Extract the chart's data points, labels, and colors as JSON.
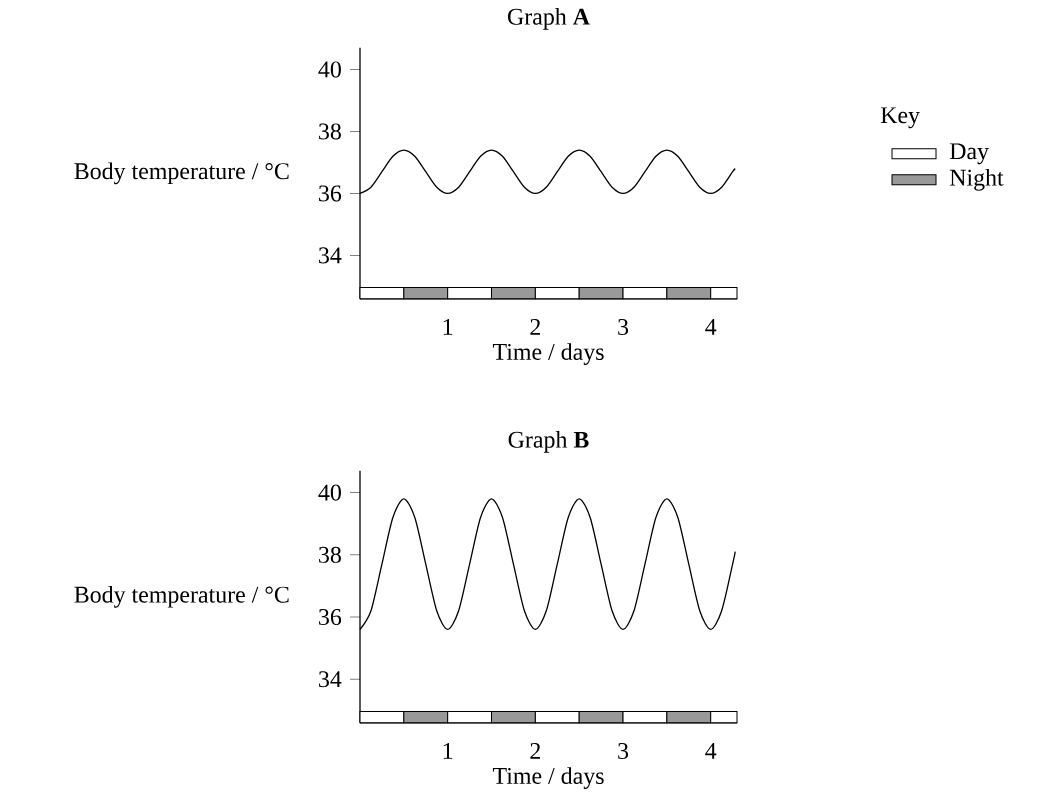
{
  "chart_data": [
    {
      "type": "line",
      "title": "Graph **A**",
      "xlabel": "Time / days",
      "ylabel": "Body temperature / °C",
      "xlim": [
        0,
        4.3
      ],
      "ylim": [
        32.6,
        40.7
      ],
      "xticks": [
        1,
        2,
        3,
        4
      ],
      "yticks": [
        34,
        36,
        38,
        40
      ],
      "legend": "right",
      "legend_title": "Key",
      "bands": [
        {
          "axis": "x",
          "from": 0,
          "to": 0.5,
          "color": "#ffffff",
          "label": "Day"
        },
        {
          "axis": "x",
          "from": 0.5,
          "to": 1,
          "color": "#999999",
          "label": "Night"
        },
        {
          "axis": "x",
          "from": 1,
          "to": 1.5,
          "color": "#ffffff"
        },
        {
          "axis": "x",
          "from": 1.5,
          "to": 2,
          "color": "#999999"
        },
        {
          "axis": "x",
          "from": 2,
          "to": 2.5,
          "color": "#ffffff"
        },
        {
          "axis": "x",
          "from": 2.5,
          "to": 3,
          "color": "#999999"
        },
        {
          "axis": "x",
          "from": 3,
          "to": 3.5,
          "color": "#ffffff"
        },
        {
          "axis": "x",
          "from": 3.5,
          "to": 4,
          "color": "#999999"
        },
        {
          "axis": "x",
          "from": 4,
          "to": 4.3,
          "color": "#ffffff"
        }
      ],
      "series": [
        {
          "color": "#000000",
          "x": [
            0,
            0.125,
            0.25,
            0.375,
            0.5,
            0.625,
            0.75,
            0.875,
            1,
            1.125,
            1.25,
            1.375,
            1.5,
            1.625,
            1.75,
            1.875,
            2,
            2.125,
            2.25,
            2.375,
            2.5,
            2.625,
            2.75,
            2.875,
            3,
            3.125,
            3.25,
            3.375,
            3.5,
            3.625,
            3.75,
            3.875,
            4,
            4.125,
            4.25,
            4.28
          ],
          "values": [
            36.0,
            36.2,
            36.7,
            37.2,
            37.4,
            37.2,
            36.7,
            36.2,
            36.0,
            36.2,
            36.7,
            37.2,
            37.4,
            37.2,
            36.7,
            36.2,
            36.0,
            36.2,
            36.7,
            37.2,
            37.4,
            37.2,
            36.7,
            36.2,
            36.0,
            36.2,
            36.7,
            37.2,
            37.4,
            37.2,
            36.7,
            36.2,
            36.0,
            36.2,
            36.7,
            36.8
          ]
        }
      ]
    },
    {
      "type": "line",
      "title": "Graph **B**",
      "xlabel": "Time / days",
      "ylabel": "Body temperature / °C",
      "xlim": [
        0,
        4.3
      ],
      "ylim": [
        32.6,
        40.7
      ],
      "xticks": [
        1,
        2,
        3,
        4
      ],
      "yticks": [
        34,
        36,
        38,
        40
      ],
      "bands": [
        {
          "axis": "x",
          "from": 0,
          "to": 0.5,
          "color": "#ffffff"
        },
        {
          "axis": "x",
          "from": 0.5,
          "to": 1,
          "color": "#999999"
        },
        {
          "axis": "x",
          "from": 1,
          "to": 1.5,
          "color": "#ffffff"
        },
        {
          "axis": "x",
          "from": 1.5,
          "to": 2,
          "color": "#999999"
        },
        {
          "axis": "x",
          "from": 2,
          "to": 2.5,
          "color": "#ffffff"
        },
        {
          "axis": "x",
          "from": 2.5,
          "to": 3,
          "color": "#999999"
        },
        {
          "axis": "x",
          "from": 3,
          "to": 3.5,
          "color": "#ffffff"
        },
        {
          "axis": "x",
          "from": 3.5,
          "to": 4,
          "color": "#999999"
        },
        {
          "axis": "x",
          "from": 4,
          "to": 4.3,
          "color": "#ffffff"
        }
      ],
      "series": [
        {
          "color": "#000000",
          "x": [
            0,
            0.125,
            0.25,
            0.375,
            0.5,
            0.625,
            0.75,
            0.875,
            1,
            1.125,
            1.25,
            1.375,
            1.5,
            1.625,
            1.75,
            1.875,
            2,
            2.125,
            2.25,
            2.375,
            2.5,
            2.625,
            2.75,
            2.875,
            3,
            3.125,
            3.25,
            3.375,
            3.5,
            3.625,
            3.75,
            3.875,
            4,
            4.125,
            4.25,
            4.28
          ],
          "values": [
            35.6,
            36.2,
            37.7,
            39.2,
            39.8,
            39.2,
            37.7,
            36.2,
            35.6,
            36.2,
            37.7,
            39.2,
            39.8,
            39.2,
            37.7,
            36.2,
            35.6,
            36.2,
            37.7,
            39.2,
            39.8,
            39.2,
            37.7,
            36.2,
            35.6,
            36.2,
            37.7,
            39.2,
            39.8,
            39.2,
            37.7,
            36.2,
            35.6,
            36.2,
            37.7,
            38.1
          ]
        }
      ]
    }
  ]
}
